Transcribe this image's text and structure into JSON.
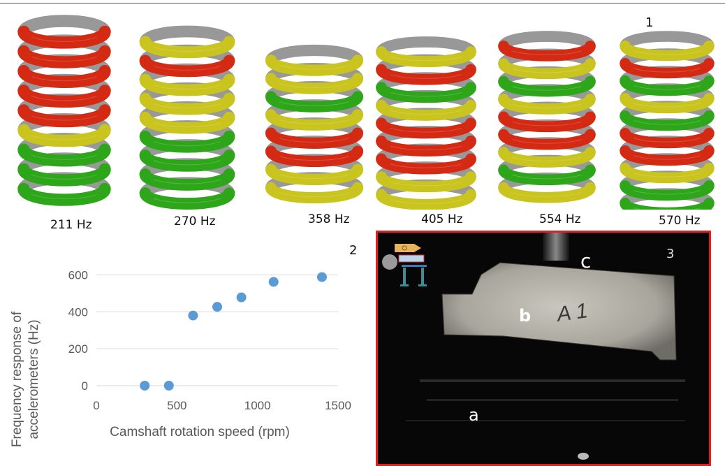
{
  "panels": {
    "top": "1",
    "chart": "2",
    "photo": "3"
  },
  "frequencies": [
    "211 Hz",
    "270 Hz",
    "358 Hz",
    "405 Hz",
    "554 Hz",
    "570 Hz"
  ],
  "photo_labels": {
    "a": "a",
    "b": "b",
    "c": "c",
    "specimen_mark": "A 1"
  },
  "colors": {
    "mode_high": "#d42a14",
    "mode_mid": "#c9c41e",
    "mode_low": "#2ea61a",
    "markers": "#5b9bd5",
    "frame": "#e02020"
  },
  "chart_data": {
    "type": "scatter",
    "xlabel": "Camshaft rotation speed (rpm)",
    "ylabel": "Frequency response of accelerometers (Hz)",
    "ylabel_lines": [
      "Frequency response of",
      "accelerometers (Hz)"
    ],
    "xlim": [
      0,
      1500
    ],
    "ylim": [
      0,
      700
    ],
    "xticks": [
      0,
      500,
      1000,
      1500
    ],
    "yticks": [
      0,
      200,
      400,
      600
    ],
    "grid": "horizontal",
    "points": [
      {
        "x": 300,
        "y": 0
      },
      {
        "x": 450,
        "y": 0
      },
      {
        "x": 600,
        "y": 380
      },
      {
        "x": 750,
        "y": 427
      },
      {
        "x": 900,
        "y": 478
      },
      {
        "x": 1100,
        "y": 562
      },
      {
        "x": 1400,
        "y": 588
      }
    ]
  }
}
